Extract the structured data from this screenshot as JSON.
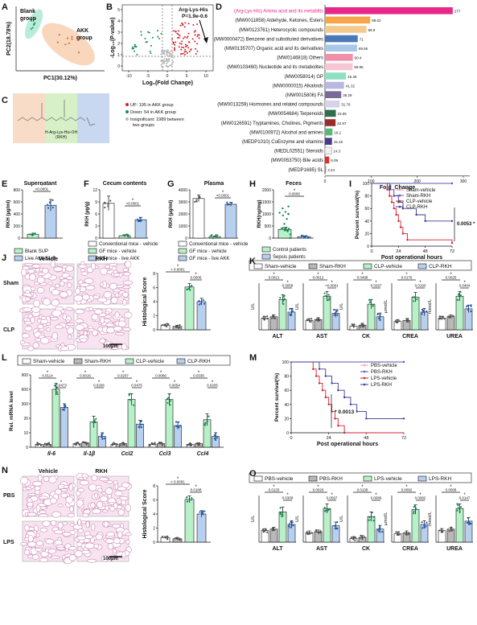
{
  "panels": {
    "A": {
      "letter": "A",
      "xlabel": "PC1(30.12%)",
      "ylabel": "PC2(18.78%)",
      "blank": "Blank group",
      "akk": "AKK group",
      "blank_line1": "Blank",
      "blank_line2": "group",
      "akk_line1": "AKK",
      "akk_line2": "group"
    },
    "B": {
      "letter": "B",
      "xlabel": "Log₂(Fold Change)",
      "ylabel": "-Log₁₀(P-value)",
      "annot1": "Arg-Lys-His",
      "annot2": "P=1.9e-0.6",
      "xticks": [
        "-10",
        "-5",
        "0",
        "5",
        "10"
      ],
      "yticks": [
        "0",
        "1",
        "2",
        "3",
        "4",
        "5"
      ],
      "legend_up": "UP: 195 in AKK group",
      "legend_down": "Down: 54 in AKK group",
      "legend_insig1": "Insignificant:  1989 between",
      "legend_insig2": "two groups"
    },
    "C": {
      "letter": "C",
      "caption1": "H-Arg-Lys-His-OH",
      "caption2": "(RKH)"
    },
    "D": {
      "letter": "D",
      "xlabel": "Fold_Change",
      "xticks": [
        "0",
        "100",
        "200",
        "300"
      ],
      "categories": [
        {
          "label": "(Arg-Lys-His) Amino acid and its metablits",
          "value": 277,
          "color": "#e8278b"
        },
        {
          "label": "(MW0011858) Aldehyde, Ketones, Esters",
          "value": 98.02,
          "color": "#f6a54a"
        },
        {
          "label": "(MW0123761) Heterocyclic compounds",
          "value": 89.9,
          "color": "#f3c98c"
        },
        {
          "label": "(MW0000472) Benzene and substituted derivatives",
          "value": 71,
          "color": "#4a78b8"
        },
        {
          "label": "(MW0135707) Organic acid and its derivatives",
          "value": 69.56,
          "color": "#a8c8e8"
        },
        {
          "label": "(MW0146818) Others",
          "value": 60.4,
          "color": "#f28fa8"
        },
        {
          "label": "(MW0103460) Nucleotide and its metabolites",
          "value": 59.96,
          "color": "#f7c6d4"
        },
        {
          "label": "(MW0058014) GP",
          "value": 45.46,
          "color": "#8fe0c0"
        },
        {
          "label": "(MW0000015) Alkaloids",
          "value": 41.32,
          "color": "#b8b8e0"
        },
        {
          "label": "(MW0015806) FA",
          "value": 35.28,
          "color": "#7a6a9a"
        },
        {
          "label": "(MW0013259) Hormones and related compounds",
          "value": 31.79,
          "color": "#d9d0ea"
        },
        {
          "label": "(MW0054684) Terpenoids",
          "value": 23.55,
          "color": "#2e6e4a"
        },
        {
          "label": "(MW0126591) Tryptamines, Cholines, Pigments",
          "value": 22.97,
          "color": "#9a2c2c"
        },
        {
          "label": "(MW0100972) Alcohol and amines",
          "value": 16.2,
          "color": "#58b878"
        },
        {
          "label": "(MEDP1010) CoEnzyme and vitamins",
          "value": 15.19,
          "color": "#4a3a8a"
        },
        {
          "label": "(MEDL02551) Steroids",
          "value": 14.3,
          "color": "#f0f0f0"
        },
        {
          "label": "(MW0053750) Bile acids",
          "value": 9.09,
          "color": "#e82828"
        },
        {
          "label": "(MEDP1685) SL",
          "value": 2.24,
          "color": "#888888"
        }
      ]
    },
    "E": {
      "letter": "E",
      "title": "Supernatant",
      "ylabel": "RKH (µg/ml)",
      "yticks": [
        "0",
        "200",
        "400",
        "600",
        "800"
      ],
      "pval": "<0.0001",
      "legend1": "Blank SUP",
      "legend2": "Live AKK SUP"
    },
    "F": {
      "letter": "F",
      "title": "Cecum contents",
      "ylabel": "RKH (µg/g)",
      "yticks": [
        "0",
        "3",
        "6",
        "9",
        "12"
      ],
      "pval": "<0.0001",
      "legend1": "Conventional mice - vehicle",
      "legend2": "GF mice  -  vehicle",
      "legend3": "GF mice  -  live AKK"
    },
    "G": {
      "letter": "G",
      "title": "Plasma",
      "ylabel": "RKH (µg/ml)",
      "yticks": [
        "0",
        "1000",
        "2000",
        "3000",
        "4000"
      ],
      "pval": "<0.0001",
      "legend1": "Conventional mice - vehicle",
      "legend2": "GF mice  -  vehicle",
      "legend3": "GF mice  -  live AKK"
    },
    "H": {
      "letter": "H",
      "title": "Feces",
      "ylabel": "RKH(ng/mg)",
      "yticks": [
        "0",
        "500",
        "1000",
        "1500",
        "2000"
      ],
      "pval": "0.0006",
      "legend1": "Control patients",
      "legend2": "Sepsis patients"
    },
    "I": {
      "letter": "I",
      "ylabel": "Percent survival(%)",
      "xlabel": "Post operational hours",
      "xticks": [
        "0",
        "24",
        "48",
        "72"
      ],
      "yticks": [
        "0",
        "20",
        "40",
        "60",
        "80",
        "100"
      ],
      "pval": "0.0053",
      "legend": [
        "Sham-vehicle",
        "Sham-RKH",
        "CLP-vehicle",
        "CLP-RKH"
      ]
    },
    "J": {
      "letter": "J",
      "col1": "Vehicle",
      "col2": "RKH",
      "row1": "Sham",
      "row2": "CLP",
      "scale": "100µm",
      "ylabel": "Histological Score",
      "yticks": [
        "0",
        "2",
        "4",
        "6",
        "8"
      ],
      "p1": "< 0.0001",
      "p2": "0.0006"
    },
    "K": {
      "letter": "K",
      "legend": [
        "Sham-vehicle",
        "Sham-RKH",
        "CLP-vehicle",
        "CLP-RKH"
      ],
      "charts": [
        {
          "name": "ALT",
          "unit": "U/L",
          "p": [
            "0.0021",
            "0.0058"
          ]
        },
        {
          "name": "AST",
          "unit": "U/L",
          "p": [
            "0.0012",
            "<0.0001"
          ]
        },
        {
          "name": "CK",
          "unit": "U/L",
          "p": [
            "0.0498",
            "0.0297"
          ]
        },
        {
          "name": "CREA",
          "unit": "µmol/L",
          "p": [
            "0.0176",
            "0.0193"
          ]
        },
        {
          "name": "UREA",
          "unit": "mmol/L",
          "p": [
            "0.0025",
            "0.0404"
          ]
        }
      ]
    },
    "L": {
      "letter": "L",
      "legend": [
        "Sham-vehicle",
        "Sham-RKH",
        "CLP-vehicle",
        "CLP-RKH"
      ],
      "ylabel": "Rel. mRNA level",
      "genes": [
        "Il-6",
        "Il-1β",
        "Ccl2",
        "Ccl3",
        "Ccl4"
      ],
      "p": [
        "0.0114",
        "0.0473",
        "0.0016",
        "0.0206",
        "0.0207",
        "0.0475",
        "0.0066",
        "0.0054",
        "0.0336",
        "0.0205"
      ]
    },
    "M": {
      "letter": "M",
      "ylabel": "Percent survival(%)",
      "xlabel": "Post operational hours",
      "xticks": [
        "0",
        "24",
        "48",
        "72"
      ],
      "yticks": [
        "0",
        "20",
        "40",
        "60",
        "80",
        "100"
      ],
      "pval": "0.0013",
      "legend": [
        "PBS-vehicle",
        "PBS-RKH",
        "LPS-vehicle",
        "LPS-RKH"
      ]
    },
    "N": {
      "letter": "N",
      "col1": "Vehicle",
      "col2": "RKH",
      "row1": "PBS",
      "row2": "LPS",
      "scale": "100µm",
      "ylabel": "Histological Score",
      "yticks": [
        "0",
        "2",
        "4",
        "6",
        "8"
      ],
      "p1": "< 0.0001",
      "p2": "0.0188"
    },
    "O": {
      "letter": "O",
      "legend": [
        "PBS-vehicle",
        "PBS-RKH",
        "LPS-vehicle",
        "LPS-RKH"
      ],
      "charts": [
        {
          "name": "ALT",
          "unit": "U/L",
          "p": [
            "0.0133",
            "0.0308"
          ]
        },
        {
          "name": "AST",
          "unit": "U/L",
          "p": [
            "0.0026",
            "0.0097"
          ]
        },
        {
          "name": "CK",
          "unit": "U/L",
          "p": [
            "0.0138",
            "0.0086"
          ]
        },
        {
          "name": "CREA",
          "unit": "µmol/L",
          "p": [
            "0.0092",
            "0.0082"
          ]
        },
        {
          "name": "UREA",
          "unit": "mmol/L",
          "p": [
            "0.0068",
            "0.0147"
          ]
        }
      ]
    }
  },
  "colors": {
    "c1": "#ffffff",
    "c2": "#b8b8b8",
    "c3": "#c8f0dc",
    "c4": "#b8c8f0",
    "green": "#1a8a5a",
    "red": "#d42030",
    "blue": "#5a8ad0",
    "pink": "#f0a0b0"
  }
}
